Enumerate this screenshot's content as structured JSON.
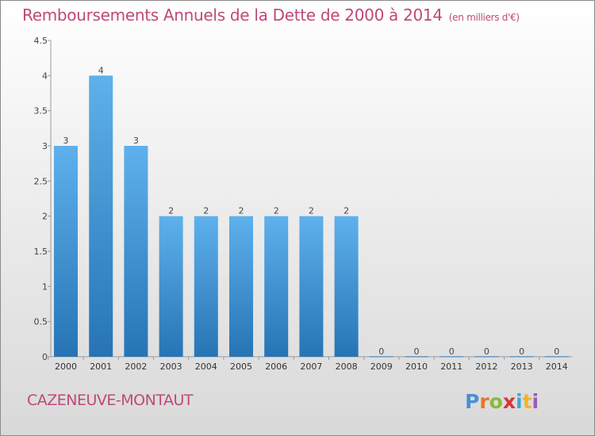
{
  "header": {
    "title": "Remboursements Annuels de la Dette de 2000 à 2014",
    "unit": "(en milliers d'€)"
  },
  "commune": "CAZENEUVE-MONTAUT",
  "logo": "Proxiti",
  "colors": {
    "bar_top": "#5eb1ec",
    "bar_bottom": "#2674b5",
    "title": "#c0487a"
  },
  "chart_data": {
    "type": "bar",
    "title": "Remboursements Annuels de la Dette de 2000 à 2014",
    "categories": [
      "2000",
      "2001",
      "2002",
      "2003",
      "2004",
      "2005",
      "2006",
      "2007",
      "2008",
      "2009",
      "2010",
      "2011",
      "2012",
      "2013",
      "2014"
    ],
    "values": [
      3,
      4,
      3,
      2,
      2,
      2,
      2,
      2,
      2,
      0,
      0,
      0,
      0,
      0,
      0
    ],
    "data_labels": [
      "3",
      "4",
      "3",
      "2",
      "2",
      "2",
      "2",
      "2",
      "2",
      "0",
      "0",
      "0",
      "0",
      "0",
      "0"
    ],
    "ylim": [
      0,
      4.5
    ],
    "yticks": [
      0,
      0.5,
      1,
      1.5,
      2,
      2.5,
      3,
      3.5,
      4,
      4.5
    ],
    "ytick_labels": [
      "0",
      "0.5",
      "1",
      "1.5",
      "2",
      "2.5",
      "3",
      "3.5",
      "4",
      "4.5"
    ],
    "grid": false,
    "legend": false
  }
}
